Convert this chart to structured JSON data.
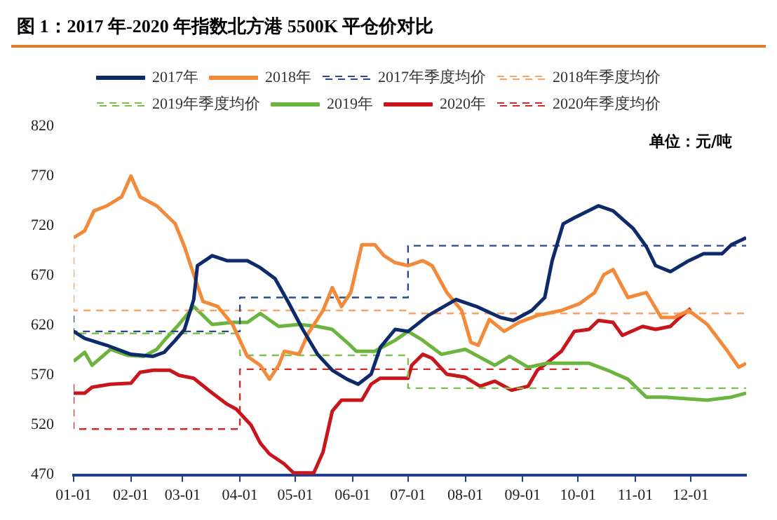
{
  "chart_data": {
    "type": "line",
    "title": "图 1：2017 年-2020 年指数北方港 5500K 平仓价对比",
    "annotations": [
      "单位：元/吨"
    ],
    "xlim": [
      "--01-01",
      "--12-31"
    ],
    "xticks": [
      {
        "value": "--01-01",
        "label": "01-01"
      },
      {
        "value": "--02-01",
        "label": "02-01"
      },
      {
        "value": "--03-01",
        "label": "03-01"
      },
      {
        "value": "--04-01",
        "label": "04-01"
      },
      {
        "value": "--05-01",
        "label": "05-01"
      },
      {
        "value": "--06-01",
        "label": "06-01"
      },
      {
        "value": "--07-01",
        "label": "07-01"
      },
      {
        "value": "--08-01",
        "label": "08-01"
      },
      {
        "value": "--09-01",
        "label": "09-01"
      },
      {
        "value": "--10-01",
        "label": "10-01"
      },
      {
        "value": "--11-01",
        "label": "11-01"
      },
      {
        "value": "--12-01",
        "label": "12-01"
      }
    ],
    "ylim": [
      470,
      820
    ],
    "yticks": [
      470,
      520,
      570,
      620,
      670,
      720,
      770,
      820
    ],
    "grid": false,
    "legend": "top",
    "marker": "none",
    "series": [
      {
        "name": "2017年",
        "type": "line",
        "color": "#0d2a6b",
        "line_style": "solid",
        "x": [
          "--01-01",
          "--01-07",
          "--01-19",
          "--02-01",
          "--02-13",
          "--02-19",
          "--02-25",
          "--03-02",
          "--03-07",
          "--03-09",
          "--03-17",
          "--03-25",
          "--04-05",
          "--04-12",
          "--04-20",
          "--04-27",
          "--05-05",
          "--05-13",
          "--05-21",
          "--05-29",
          "--06-04",
          "--06-11",
          "--06-16",
          "--06-24",
          "--07-01",
          "--07-12",
          "--07-27",
          "--08-07",
          "--08-20",
          "--08-27",
          "--09-06",
          "--09-13",
          "--09-17",
          "--09-23",
          "--09-29",
          "--10-12",
          "--10-20",
          "--10-31",
          "--11-07",
          "--11-12",
          "--11-20",
          "--11-30",
          "--12-08",
          "--12-18",
          "--12-23",
          "--12-31"
        ],
        "values": [
          614,
          607,
          600,
          591,
          589,
          593,
          605,
          616,
          646,
          680,
          690,
          685,
          685,
          678,
          667,
          644,
          616,
          591,
          575,
          566,
          561,
          571,
          598,
          616,
          614,
          630,
          646,
          639,
          628,
          625,
          635,
          648,
          685,
          722,
          728,
          740,
          735,
          717,
          699,
          680,
          674,
          685,
          692,
          692,
          701,
          708
        ]
      },
      {
        "name": "2018年",
        "type": "line",
        "color": "#f28a3a",
        "line_style": "solid",
        "x": [
          "--01-01",
          "--01-07",
          "--01-12",
          "--01-19",
          "--01-27",
          "--02-01",
          "--02-06",
          "--02-15",
          "--02-25",
          "--03-02",
          "--03-07",
          "--03-12",
          "--03-20",
          "--03-28",
          "--04-05",
          "--04-12",
          "--04-17",
          "--04-22",
          "--04-25",
          "--05-03",
          "--05-08",
          "--05-16",
          "--05-21",
          "--05-26",
          "--05-31",
          "--06-06",
          "--06-13",
          "--06-18",
          "--06-24",
          "--07-01",
          "--07-09",
          "--07-14",
          "--07-22",
          "--07-30",
          "--08-04",
          "--08-08",
          "--08-14",
          "--08-22",
          "--08-30",
          "--09-09",
          "--09-22",
          "--10-02",
          "--10-10",
          "--10-15",
          "--10-20",
          "--10-28",
          "--11-07",
          "--11-15",
          "--11-22",
          "--11-30",
          "--12-10",
          "--12-21",
          "--12-27",
          "--12-31"
        ],
        "values": [
          708,
          715,
          735,
          740,
          749,
          770,
          749,
          740,
          722,
          699,
          671,
          644,
          639,
          621,
          589,
          580,
          566,
          580,
          594,
          591,
          612,
          635,
          658,
          639,
          653,
          701,
          701,
          690,
          683,
          680,
          685,
          680,
          653,
          635,
          603,
          600,
          626,
          614,
          623,
          630,
          635,
          642,
          653,
          671,
          676,
          648,
          653,
          628,
          628,
          635,
          621,
          594,
          578,
          582
        ]
      },
      {
        "name": "2017年季度均价",
        "type": "step",
        "color": "#2d4a8a",
        "line_style": "dashed",
        "x": [
          "--01-01",
          "--04-01",
          "--07-01",
          "--10-01",
          "--12-31"
        ],
        "values": [
          630,
          614,
          648,
          700,
          700
        ]
      },
      {
        "name": "2018年季度均价",
        "type": "step",
        "color": "#f5a46a",
        "line_style": "dashed",
        "x": [
          "--01-01",
          "--04-01",
          "--07-01",
          "--10-01",
          "--12-31"
        ],
        "values": [
          701,
          635,
          635,
          632,
          632
        ]
      },
      {
        "name": "2019年季度均价",
        "type": "step",
        "color": "#7cc04e",
        "line_style": "dashed",
        "x": [
          "--01-01",
          "--04-01",
          "--07-01",
          "--10-01",
          "--12-31"
        ],
        "values": [
          605,
          612,
          590,
          557,
          557
        ]
      },
      {
        "name": "2019年",
        "type": "line",
        "color": "#6db33f",
        "line_style": "solid",
        "x": [
          "--01-01",
          "--01-07",
          "--01-11",
          "--01-21",
          "--01-30",
          "--02-08",
          "--02-15",
          "--02-20",
          "--02-27",
          "--03-07",
          "--03-17",
          "--03-28",
          "--04-05",
          "--04-12",
          "--04-22",
          "--05-03",
          "--05-13",
          "--05-21",
          "--05-29",
          "--06-03",
          "--06-13",
          "--06-24",
          "--07-01",
          "--07-09",
          "--07-19",
          "--08-01",
          "--08-17",
          "--08-25",
          "--09-04",
          "--09-14",
          "--10-07",
          "--10-17",
          "--10-28",
          "--11-07",
          "--11-17",
          "--12-10",
          "--12-23",
          "--12-31"
        ],
        "values": [
          584,
          593,
          580,
          596,
          590,
          589,
          596,
          607,
          621,
          639,
          621,
          623,
          623,
          632,
          619,
          621,
          619,
          616,
          603,
          594,
          594,
          605,
          614,
          605,
          591,
          596,
          580,
          589,
          578,
          582,
          582,
          575,
          566,
          548,
          548,
          545,
          548,
          552
        ]
      },
      {
        "name": "2020年",
        "type": "line",
        "color": "#c8161d",
        "line_style": "solid",
        "x": [
          "--01-01",
          "--01-07",
          "--01-11",
          "--01-21",
          "--02-01",
          "--02-06",
          "--02-13",
          "--02-22",
          "--02-27",
          "--03-07",
          "--03-15",
          "--03-25",
          "--03-30",
          "--04-07",
          "--04-12",
          "--04-17",
          "--04-25",
          "--04-30",
          "--05-11",
          "--05-16",
          "--05-21",
          "--05-26",
          "--06-06",
          "--06-11",
          "--06-16",
          "--06-24",
          "--07-01",
          "--07-03",
          "--07-09",
          "--07-14",
          "--07-22",
          "--08-01",
          "--08-09",
          "--08-17",
          "--08-26",
          "--09-04",
          "--09-09",
          "--09-14",
          "--09-22",
          "--09-29",
          "--10-07",
          "--10-12",
          "--10-20",
          "--10-25",
          "--11-05",
          "--11-12",
          "--11-20",
          "--11-25",
          "--12-01"
        ],
        "values": [
          552,
          552,
          558,
          561,
          562,
          573,
          575,
          575,
          570,
          567,
          555,
          541,
          536,
          520,
          502,
          491,
          481,
          472,
          472,
          493,
          534,
          545,
          545,
          561,
          567,
          567,
          567,
          580,
          591,
          587,
          571,
          568,
          559,
          564,
          555,
          559,
          575,
          582,
          594,
          614,
          616,
          625,
          623,
          610,
          619,
          616,
          619,
          628,
          637
        ]
      },
      {
        "name": "2020年季度均价",
        "type": "step",
        "color": "#d42a2a",
        "line_style": "dashed",
        "x": [
          "--01-01",
          "--04-01",
          "--07-01",
          "--10-01"
        ],
        "values": [
          561,
          516,
          576,
          576
        ]
      }
    ]
  }
}
